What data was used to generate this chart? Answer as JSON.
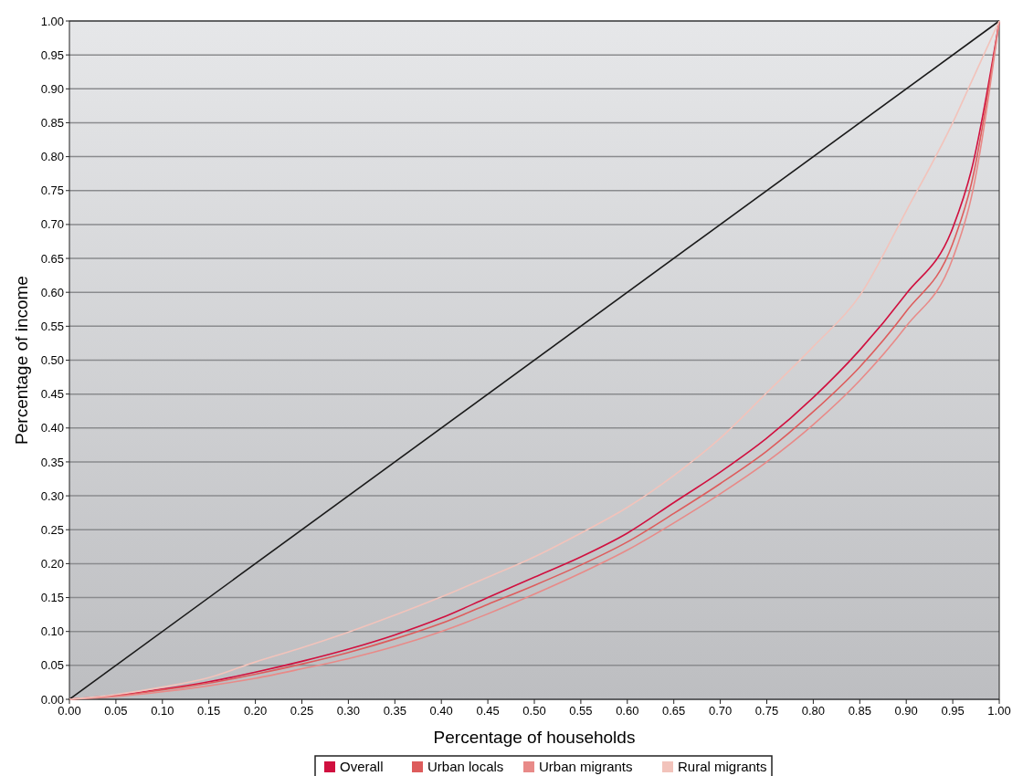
{
  "chart_data": {
    "type": "line",
    "xlabel": "Percentage of households",
    "ylabel": "Percentage of income",
    "x": [
      0,
      0.05,
      0.1,
      0.15,
      0.2,
      0.25,
      0.3,
      0.35,
      0.4,
      0.45,
      0.5,
      0.55,
      0.6,
      0.65,
      0.7,
      0.75,
      0.8,
      0.85,
      0.9,
      0.95,
      0.97,
      1
    ],
    "series": [
      {
        "type": "line",
        "color": "#1a1a1a",
        "x": [
          0,
          1
        ],
        "values": [
          0,
          1
        ]
      },
      {
        "name": "Overall",
        "color": "#d0103f",
        "values": [
          0,
          0.006,
          0.015,
          0.026,
          0.04,
          0.056,
          0.074,
          0.095,
          0.12,
          0.15,
          0.18,
          0.21,
          0.245,
          0.29,
          0.335,
          0.385,
          0.445,
          0.515,
          0.598,
          0.695,
          0.78,
          1
        ]
      },
      {
        "name": "Urban locals",
        "color": "#dd5c5c",
        "values": [
          0,
          0.005,
          0.014,
          0.024,
          0.037,
          0.052,
          0.069,
          0.089,
          0.112,
          0.14,
          0.168,
          0.198,
          0.232,
          0.274,
          0.318,
          0.366,
          0.424,
          0.49,
          0.572,
          0.672,
          0.76,
          1
        ]
      },
      {
        "name": "Urban migrants",
        "color": "#e88a88",
        "values": [
          0,
          0.004,
          0.011,
          0.02,
          0.031,
          0.045,
          0.06,
          0.078,
          0.1,
          0.126,
          0.155,
          0.186,
          0.22,
          0.26,
          0.303,
          0.35,
          0.405,
          0.47,
          0.55,
          0.65,
          0.74,
          1
        ]
      },
      {
        "name": "Rural migrants",
        "color": "#f2c3bb",
        "values": [
          0,
          0.007,
          0.018,
          0.032,
          0.055,
          0.076,
          0.099,
          0.124,
          0.151,
          0.18,
          0.21,
          0.245,
          0.283,
          0.33,
          0.385,
          0.452,
          0.52,
          0.595,
          0.72,
          0.85,
          0.91,
          1
        ]
      }
    ],
    "xlim": [
      0,
      1
    ],
    "ylim": [
      0,
      1
    ],
    "xticks": [
      {
        "value": 0,
        "label": "0.00"
      },
      {
        "value": 0.05,
        "label": "0.05"
      },
      {
        "value": 0.1,
        "label": "0.10"
      },
      {
        "value": 0.15,
        "label": "0.15"
      },
      {
        "value": 0.2,
        "label": "0.20"
      },
      {
        "value": 0.25,
        "label": "0.25"
      },
      {
        "value": 0.3,
        "label": "0.30"
      },
      {
        "value": 0.35,
        "label": "0.35"
      },
      {
        "value": 0.4,
        "label": "0.40"
      },
      {
        "value": 0.45,
        "label": "0.45"
      },
      {
        "value": 0.5,
        "label": "0.50"
      },
      {
        "value": 0.55,
        "label": "0.55"
      },
      {
        "value": 0.6,
        "label": "0.60"
      },
      {
        "value": 0.65,
        "label": "0.65"
      },
      {
        "value": 0.7,
        "label": "0.70"
      },
      {
        "value": 0.75,
        "label": "0.75"
      },
      {
        "value": 0.8,
        "label": "0.80"
      },
      {
        "value": 0.85,
        "label": "0.85"
      },
      {
        "value": 0.9,
        "label": "0.90"
      },
      {
        "value": 0.95,
        "label": "0.95"
      },
      {
        "value": 1,
        "label": "1.00"
      }
    ],
    "yticks": [
      {
        "value": 0,
        "label": "0.00"
      },
      {
        "value": 0.05,
        "label": "0.05"
      },
      {
        "value": 0.1,
        "label": "0.10"
      },
      {
        "value": 0.15,
        "label": "0.15"
      },
      {
        "value": 0.2,
        "label": "0.20"
      },
      {
        "value": 0.25,
        "label": "0.25"
      },
      {
        "value": 0.3,
        "label": "0.30"
      },
      {
        "value": 0.35,
        "label": "0.35"
      },
      {
        "value": 0.4,
        "label": "0.40"
      },
      {
        "value": 0.45,
        "label": "0.45"
      },
      {
        "value": 0.5,
        "label": "0.50"
      },
      {
        "value": 0.55,
        "label": "0.55"
      },
      {
        "value": 0.6,
        "label": "0.60"
      },
      {
        "value": 0.65,
        "label": "0.65"
      },
      {
        "value": 0.7,
        "label": "0.70"
      },
      {
        "value": 0.75,
        "label": "0.75"
      },
      {
        "value": 0.8,
        "label": "0.80"
      },
      {
        "value": 0.85,
        "label": "0.85"
      },
      {
        "value": 0.9,
        "label": "0.90"
      },
      {
        "value": 0.95,
        "label": "0.95"
      },
      {
        "value": 1,
        "label": "1.00"
      }
    ],
    "grid": "y",
    "legend": "bottom",
    "marker": "none",
    "line_style": "solid"
  }
}
